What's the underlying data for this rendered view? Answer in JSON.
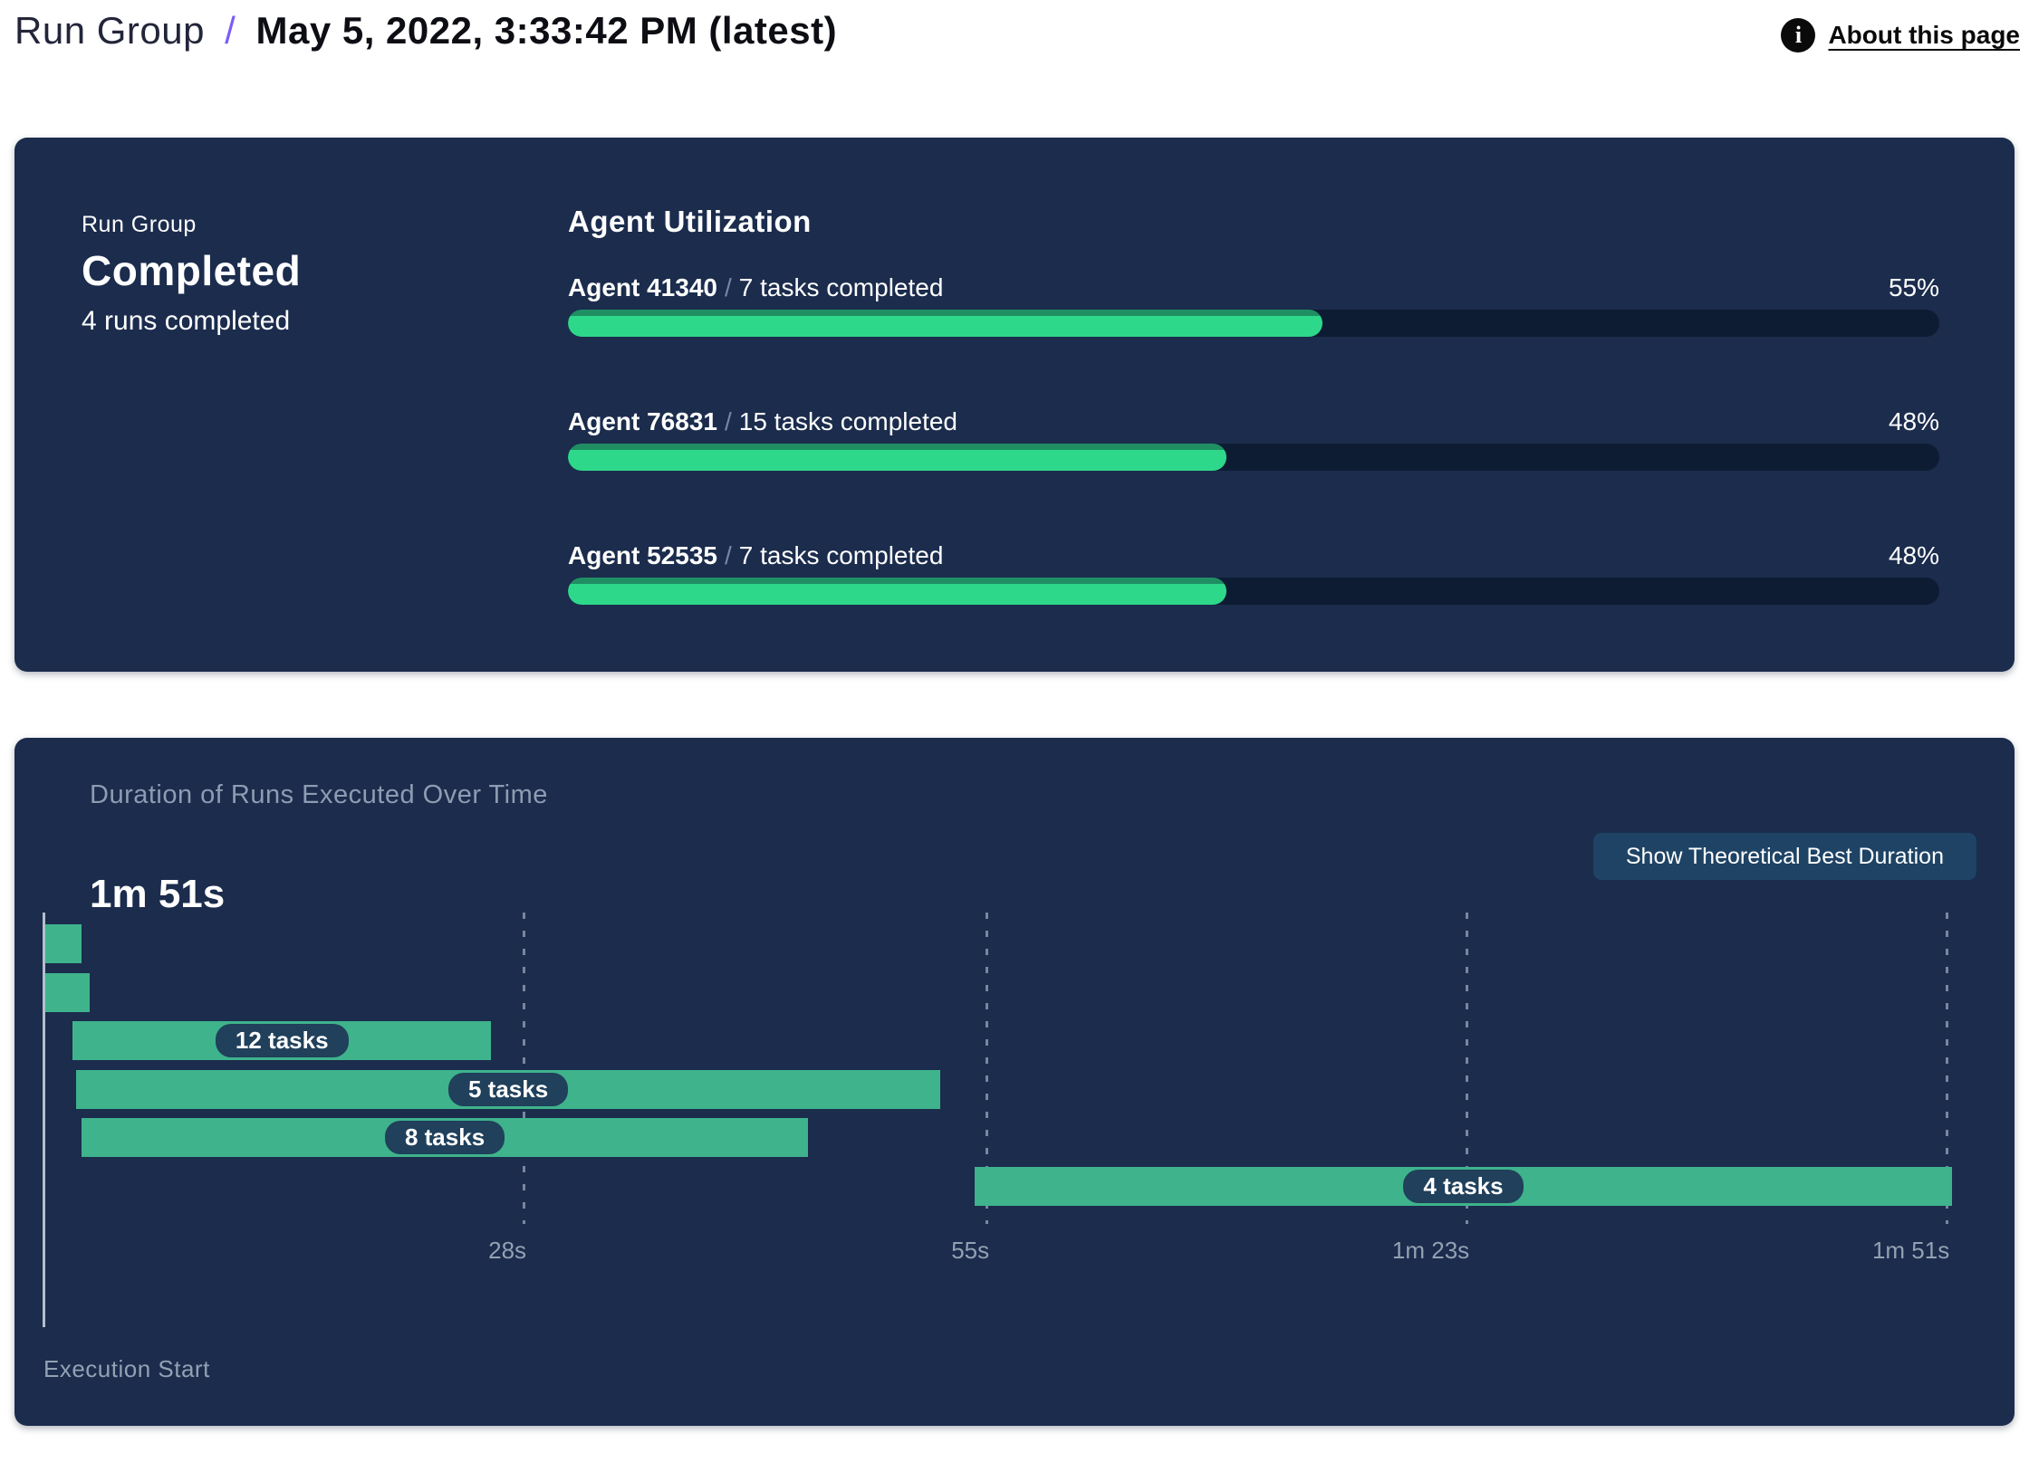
{
  "header": {
    "breadcrumb_group": "Run Group",
    "breadcrumb_separator": "/",
    "title": "May 5, 2022, 3:33:42 PM (latest)",
    "about_link": "About this page",
    "info_icon": "info-icon"
  },
  "status_panel": {
    "label": "Run Group",
    "status": "Completed",
    "sub": "4 runs completed"
  },
  "utilization": {
    "title": "Agent Utilization",
    "separator": "/",
    "agents": [
      {
        "name": "Agent 41340",
        "tasks": "7 tasks completed",
        "percent": 55,
        "percent_label": "55%"
      },
      {
        "name": "Agent 76831",
        "tasks": "15 tasks completed",
        "percent": 48,
        "percent_label": "48%"
      },
      {
        "name": "Agent 52535",
        "tasks": "7 tasks completed",
        "percent": 48,
        "percent_label": "48%"
      }
    ]
  },
  "duration_panel": {
    "title": "Duration of Runs Executed Over Time",
    "total": "1m 51s",
    "button": "Show Theoretical Best Duration",
    "axis_label": "Execution Start"
  },
  "chart_data": {
    "type": "gantt",
    "title": "Duration of Runs Executed Over Time",
    "total_duration": "1m 51s",
    "x_unit": "seconds",
    "xlim": [
      0,
      111
    ],
    "grid": "dashed-vertical",
    "ticks": [
      {
        "s": 28,
        "label": "28s"
      },
      {
        "s": 55,
        "label": "55s"
      },
      {
        "s": 83,
        "label": "1m 23s"
      },
      {
        "s": 111,
        "label": "1m 51s"
      }
    ],
    "runs": [
      {
        "start_s": 0.0,
        "end_s": 2.1,
        "label": null
      },
      {
        "start_s": 0.0,
        "end_s": 2.6,
        "label": null
      },
      {
        "start_s": 1.6,
        "end_s": 26.0,
        "label": "12 tasks"
      },
      {
        "start_s": 1.8,
        "end_s": 52.2,
        "label": "5 tasks"
      },
      {
        "start_s": 2.1,
        "end_s": 44.5,
        "label": "8 tasks"
      },
      {
        "start_s": 54.2,
        "end_s": 111.2,
        "label": "4 tasks"
      }
    ],
    "colors": {
      "panel_bg": "#1b2c4d",
      "bar_green": "#3fb38c",
      "progress_green": "#2ed88a",
      "progress_green_dark": "#1f8f63",
      "track_dark": "#0e1c33",
      "pill_bg": "#20405b",
      "accent_purple": "#7b5cf5",
      "muted_text": "#93a1b3",
      "button_bg": "#1e4365"
    }
  }
}
